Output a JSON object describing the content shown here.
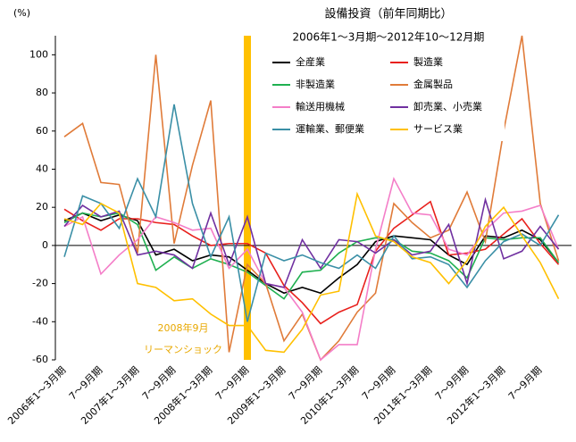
{
  "chart_data": {
    "type": "line",
    "title": "設備投資（前年同期比）",
    "subtitle": "2006年1～3月期～2012年10～12月期",
    "y_label": "(%)",
    "annotations": [
      "2008年9月",
      "リーマンショック"
    ],
    "categories": [
      "2006年1～3月期",
      null,
      "7～9月期",
      null,
      "2007年1～3月期",
      null,
      "7～9月期",
      null,
      "2008年1～3月期",
      null,
      "7～9月期",
      null,
      "2009年1～3月期",
      null,
      "7～9月期",
      null,
      "2010年1～3月期",
      null,
      "7～9月期",
      null,
      "2011年1～3月期",
      null,
      "7～9月期",
      null,
      "2012年1～3月期",
      null,
      "7～9月期",
      null
    ],
    "ylim": [
      -60,
      110
    ],
    "yticks": [
      -60,
      -40,
      -20,
      0,
      20,
      40,
      60,
      80,
      100
    ],
    "series": [
      {
        "name": "全産業",
        "color": "#000000",
        "values": [
          13,
          17,
          13,
          16,
          13,
          -5,
          -2,
          -8,
          -5,
          -6,
          -13,
          -20,
          -25,
          -22,
          -25,
          -17,
          -10,
          2,
          5,
          4,
          3,
          -5,
          -10,
          5,
          4,
          8,
          3,
          -9
        ]
      },
      {
        "name": "製造業",
        "color": "#e8201c",
        "values": [
          19,
          13,
          8,
          14,
          14,
          12,
          11,
          5,
          0,
          1,
          1,
          -4,
          -21,
          -30,
          -41,
          -35,
          -31,
          -3,
          9,
          16,
          23,
          -5,
          -4,
          -2,
          6,
          14,
          1,
          -10
        ]
      },
      {
        "name": "非製造業",
        "color": "#1fb050",
        "values": [
          12,
          17,
          15,
          17,
          11,
          -13,
          -6,
          -12,
          -7,
          -10,
          -14,
          -21,
          -28,
          -14,
          -13,
          -4,
          2,
          4,
          3,
          -3,
          -4,
          -8,
          -17,
          4,
          3,
          4,
          4,
          -9
        ]
      },
      {
        "name": "金属製品",
        "color": "#e07b39",
        "values": [
          57,
          64,
          33,
          32,
          -4,
          100,
          1,
          42,
          76,
          -56,
          -10,
          -20,
          -50,
          -36,
          -60,
          -50,
          -35,
          -25,
          22,
          12,
          4,
          8,
          28,
          2,
          60,
          110,
          22,
          -8
        ]
      },
      {
        "name": "輸送用機械",
        "color": "#f47ec8",
        "values": [
          10,
          15,
          -15,
          -5,
          3,
          15,
          12,
          8,
          9,
          -12,
          -2,
          -20,
          -22,
          -35,
          -60,
          -52,
          -52,
          -2,
          35,
          17,
          16,
          -2,
          -5,
          8,
          17,
          18,
          21,
          -2
        ]
      },
      {
        "name": "卸売業、小売業",
        "color": "#7030a0",
        "values": [
          10,
          21,
          15,
          18,
          -5,
          -3,
          -5,
          -12,
          17,
          -10,
          15,
          -20,
          -22,
          3,
          -12,
          3,
          2,
          -4,
          3,
          -5,
          -3,
          11,
          -20,
          24,
          -7,
          -3,
          10,
          -2
        ]
      },
      {
        "name": "運輸業、郵便業",
        "color": "#3a8fa6",
        "values": [
          -6,
          26,
          22,
          9,
          35,
          15,
          74,
          22,
          -6,
          15,
          -40,
          -4,
          -8,
          -5,
          -9,
          -12,
          -5,
          -12,
          5,
          -7,
          -6,
          -10,
          -22,
          -8,
          2,
          6,
          0,
          16
        ]
      },
      {
        "name": "サービス業",
        "color": "#ffc000",
        "values": [
          14,
          11,
          22,
          17,
          -20,
          -22,
          -29,
          -28,
          -36,
          -42,
          -42,
          -55,
          -56,
          -44,
          -26,
          -24,
          27,
          5,
          2,
          -6,
          -9,
          -20,
          -8,
          10,
          20,
          5,
          -9,
          -28
        ]
      }
    ]
  }
}
